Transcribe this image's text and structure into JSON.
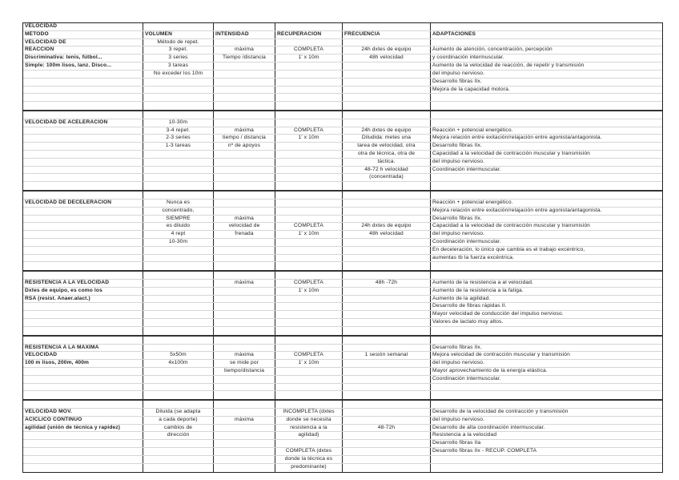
{
  "sections": [
    {
      "name": "velocidad-de-reaccion",
      "rows": [
        [
          "VELOCIDAD",
          "",
          "",
          "",
          "",
          ""
        ],
        [
          "MÉTODO",
          "VOLUMEN",
          "INTENSIDAD",
          "RECUPERACIÓN",
          "FRECUENCIA",
          "ADAPTACIONES"
        ],
        [
          "VELOCIDAD DE",
          "Método de repet.",
          "",
          "",
          "",
          ""
        ],
        [
          "REACCIÓN",
          "3 repet.",
          "máxima",
          "COMPLETA",
          "24h dxtes de equipo",
          "Aumento de atención, concentración, percepción"
        ],
        [
          "Discriminativa: tenis, fútbol...",
          "3 series",
          "Tiempo /distancia",
          "1' x 10m",
          "48h velocidad",
          "y coordinación intermuscular."
        ],
        [
          "Simple: 100m lisos, lanz. Disco...",
          "3 tareas",
          "",
          "",
          "",
          "Aumento de la velocidad de reacción, de repetir y transmisión"
        ],
        [
          "",
          "No exceder los 10m",
          "",
          "",
          "",
          "del impulso nervioso."
        ],
        [
          "",
          "",
          "",
          "",
          "",
          "Desarrollo fibras IIx."
        ],
        [
          "",
          "",
          "",
          "",
          "",
          "Mejora de la capacidad motora."
        ],
        [
          "",
          "",
          "",
          "",
          "",
          ""
        ],
        [
          "",
          "",
          "",
          "",
          "",
          ""
        ]
      ]
    },
    {
      "name": "velocidad-de-aceleracion",
      "rows": [
        [
          "",
          "",
          "",
          "",
          "",
          ""
        ],
        [
          "VELOCIDAD DE ACELERACIÓN",
          "10-30m",
          "",
          "",
          "",
          ""
        ],
        [
          "",
          "3-4 repet.",
          "máxima",
          "COMPLETA",
          "24h dxtes de equipo",
          "Reacción + potencial energético."
        ],
        [
          "",
          "2-3 series",
          "tiempo / distancia",
          "1' x 10m",
          "Diludida: metes una",
          "Mejora relación entre exitación/relajación entre agonista/antagonista."
        ],
        [
          "",
          "1-3 tareas",
          "nº de apoyos",
          "",
          "tarea de velocidad, otra",
          "Desarrollo fibras IIx."
        ],
        [
          "",
          "",
          "",
          "",
          "otra de técnica, otra de",
          "Capacidad a la velocidad de contracción muscular y transmisión"
        ],
        [
          "",
          "",
          "",
          "",
          "táctica.",
          "del impulso nervioso."
        ],
        [
          "",
          "",
          "",
          "",
          "48-72 h velocidad",
          "Coordinación intermuscular."
        ],
        [
          "",
          "",
          "",
          "",
          "(concentrada)",
          ""
        ],
        [
          "",
          "",
          "",
          "",
          "",
          ""
        ]
      ]
    },
    {
      "name": "velocidad-de-deceleracion",
      "rows": [
        [
          "",
          "",
          "",
          "",
          "",
          ""
        ],
        [
          "VELOCIDAD DE DECELERACIÓN",
          "Nunca es",
          "",
          "",
          "",
          "Reacción + potencial energético."
        ],
        [
          "",
          "concentrado,",
          "",
          "",
          "",
          "Mejora relación entre exitación/relajación entre agonista/antagonista."
        ],
        [
          "",
          "SIEMPRE",
          "máxima",
          "",
          "",
          "Desarrollo fibras IIx."
        ],
        [
          "",
          "es diluido",
          "velocidad de",
          "COMPLETA",
          "24h dxtes de equipo",
          "Capacidad a la velocidad de contracción muscular y transmisión"
        ],
        [
          "",
          "4 rept",
          "frenada",
          "1' x 10m",
          "48h velocidad",
          "del impulso nervioso."
        ],
        [
          "",
          "10-30m",
          "",
          "",
          "",
          "Coordinación intermuscular."
        ],
        [
          "",
          "",
          "",
          "",
          "",
          "En deceleración, lo único que cambia es el trabajo excéntrico,"
        ],
        [
          "",
          "",
          "",
          "",
          "",
          "aumentas tb la fuerza excéntrica."
        ],
        [
          "",
          "",
          "",
          "",
          "",
          ""
        ]
      ]
    },
    {
      "name": "resistencia-a-la-velocidad",
      "rows": [
        [
          "",
          "",
          "",
          "",
          "",
          ""
        ],
        [
          "RESISTENCIA A LA VELOCIDAD",
          "",
          "máxima",
          "COMPLETA",
          "48h -72h",
          "Aumento de la resistencia a al velocidad."
        ],
        [
          "Dxtes de equipo, es como los",
          "",
          "",
          "1' x 10m",
          "",
          "Aumento de la resistencia a la fatiga."
        ],
        [
          "RSA (resist. Anaer.alact.)",
          "",
          "",
          "",
          "",
          "Aumento de la agilidad."
        ],
        [
          "",
          "",
          "",
          "",
          "",
          "Desarrollo de fibras rápidas II."
        ],
        [
          "",
          "",
          "",
          "",
          "",
          "Mayor velocidad de conducción del impulso nervioso."
        ],
        [
          "",
          "",
          "",
          "",
          "",
          "Valores de lactato muy altos."
        ],
        [
          "",
          "",
          "",
          "",
          "",
          ""
        ]
      ]
    },
    {
      "name": "resistencia-a-la-maxima-velocidad",
      "rows": [
        [
          "",
          "",
          "",
          "",
          "",
          ""
        ],
        [
          "RESISTENCIA A LA MÁXIMA",
          "",
          "",
          "",
          "",
          "Desarrollo fibras IIx."
        ],
        [
          "VELOCIDAD",
          "5x50m",
          "máxima",
          "COMPLETA",
          "1 sesión semanal",
          "Mejora velocidad de contracción muscular y transmisión"
        ],
        [
          "100 m lisos, 200m, 400m",
          "4x100m",
          "se mide por",
          "1' x 10m",
          "",
          "del impulso nervioso."
        ],
        [
          "",
          "",
          "tiempo/distancia",
          "",
          "",
          "Mayor aprovechamiento de la energía elástica."
        ],
        [
          "",
          "",
          "",
          "",
          "",
          "Coordinación intermuscular."
        ],
        [
          "",
          "",
          "",
          "",
          "",
          ""
        ],
        [
          "",
          "",
          "",
          "",
          "",
          ""
        ]
      ]
    },
    {
      "name": "velocidad-mov-aciclico-continuo",
      "rows": [
        [
          "",
          "",
          "",
          "",
          "",
          ""
        ],
        [
          "VELOCIDAD MOV.",
          "Diluida (se adapta",
          "",
          "INCOMPLETA (dxtes",
          "",
          "Desarrollo de la velocidad de contracción y transmisión"
        ],
        [
          "ACÍCLICO CONTINUO",
          "a cada deporte)",
          "máxima",
          "donde se necesita",
          "",
          "del impulso nervioso."
        ],
        [
          "agilidad (unión de técnica y rapidez)",
          "cambios de",
          "",
          "resistencia a la",
          "48-72h",
          "Desarrollo de alta coordinación intermuscular."
        ],
        [
          "",
          "dirección",
          "",
          "agilidad)",
          "",
          "Resistencia a la velocidad"
        ],
        [
          "",
          "",
          "",
          "",
          "",
          "Desarrollo fibras IIa"
        ],
        [
          "",
          "",
          "",
          "COMPLETA (dxtes",
          "",
          "Desarrollo fibras IIx - RECUP. COMPLETA"
        ],
        [
          "",
          "",
          "",
          "donde la técnica es",
          "",
          ""
        ],
        [
          "",
          "",
          "",
          "predominante)",
          "",
          ""
        ]
      ]
    }
  ]
}
